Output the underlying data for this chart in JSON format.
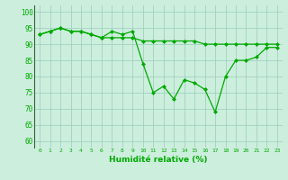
{
  "x": [
    0,
    1,
    2,
    3,
    4,
    5,
    6,
    7,
    8,
    9,
    10,
    11,
    12,
    13,
    14,
    15,
    16,
    17,
    18,
    19,
    20,
    21,
    22,
    23
  ],
  "line1": [
    93,
    94,
    95,
    94,
    94,
    93,
    92,
    92,
    92,
    92,
    91,
    91,
    91,
    91,
    91,
    91,
    90,
    90,
    90,
    90,
    90,
    90,
    90,
    90
  ],
  "line2": [
    93,
    94,
    95,
    94,
    94,
    93,
    92,
    94,
    93,
    94,
    84,
    75,
    77,
    73,
    79,
    78,
    76,
    69,
    80,
    85,
    85,
    86,
    89,
    89
  ],
  "line_color": "#00aa00",
  "bg_color": "#cceedd",
  "grid_color": "#99ccbb",
  "xlabel": "Humidité relative (%)",
  "xlabel_color": "#00aa00",
  "ylabel_values": [
    60,
    65,
    70,
    75,
    80,
    85,
    90,
    95,
    100
  ],
  "ylim": [
    58,
    102
  ],
  "xlim": [
    -0.5,
    23.5
  ]
}
